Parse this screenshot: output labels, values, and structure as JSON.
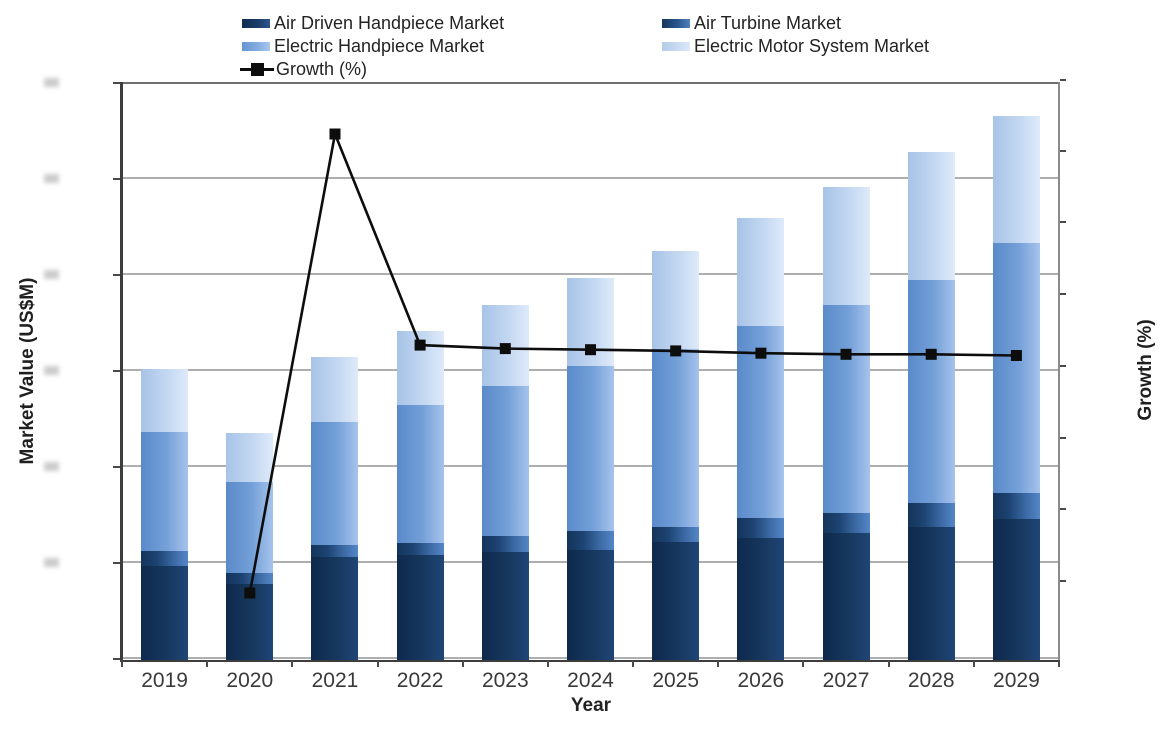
{
  "chart_data": {
    "type": "stacked_bar_with_line",
    "title": "",
    "xlabel": "Year",
    "ylabel_left": "Market Value (US$M)",
    "ylabel_right": "Growth (%)",
    "categories": [
      "2019",
      "2020",
      "2021",
      "2022",
      "2023",
      "2024",
      "2025",
      "2026",
      "2027",
      "2028",
      "2029"
    ],
    "series": [
      {
        "name": "Air Driven Handpiece Market",
        "type": "bar",
        "color": "#17375d",
        "values": [
          98,
          79,
          107,
          109,
          112,
          115,
          123,
          127,
          132,
          139,
          147
        ]
      },
      {
        "name": "Air Turbine Market",
        "type": "bar",
        "color": "#2f5f9e",
        "values": [
          16,
          12,
          13,
          13,
          17,
          19,
          16,
          21,
          21,
          25,
          27
        ]
      },
      {
        "name": "Electric Handpiece Market",
        "type": "bar",
        "color": "#74a0d8",
        "values": [
          123,
          94,
          128,
          144,
          156,
          172,
          185,
          200,
          217,
          232,
          260
        ]
      },
      {
        "name": "Electric Motor System Market",
        "type": "bar",
        "color": "#c3d7f1",
        "values": [
          66,
          51,
          68,
          77,
          85,
          92,
          102,
          112,
          123,
          133,
          133
        ]
      }
    ],
    "line_series": {
      "name": "Growth (%)",
      "type": "line",
      "color": "#0d0d0d",
      "marker": "square",
      "x": [
        "2020",
        "2021",
        "2022",
        "2023",
        "2024",
        "2025",
        "2026",
        "2027",
        "2028",
        "2029"
      ],
      "values": [
        -14,
        26,
        7.6,
        7.3,
        7.2,
        7.1,
        6.9,
        6.8,
        6.8,
        6.7
      ]
    },
    "ylim_left_estimated": [
      0,
      600
    ],
    "gridline_step_left_estimated": 100,
    "grid": true,
    "legend_position": "top",
    "axis_tick_labels_visible": false,
    "note": "Y-axis tick labels on both axes are blurred/illegible in the source; bar and growth values are estimates (one horizontal gridline interval taken as 100 US$M)."
  }
}
